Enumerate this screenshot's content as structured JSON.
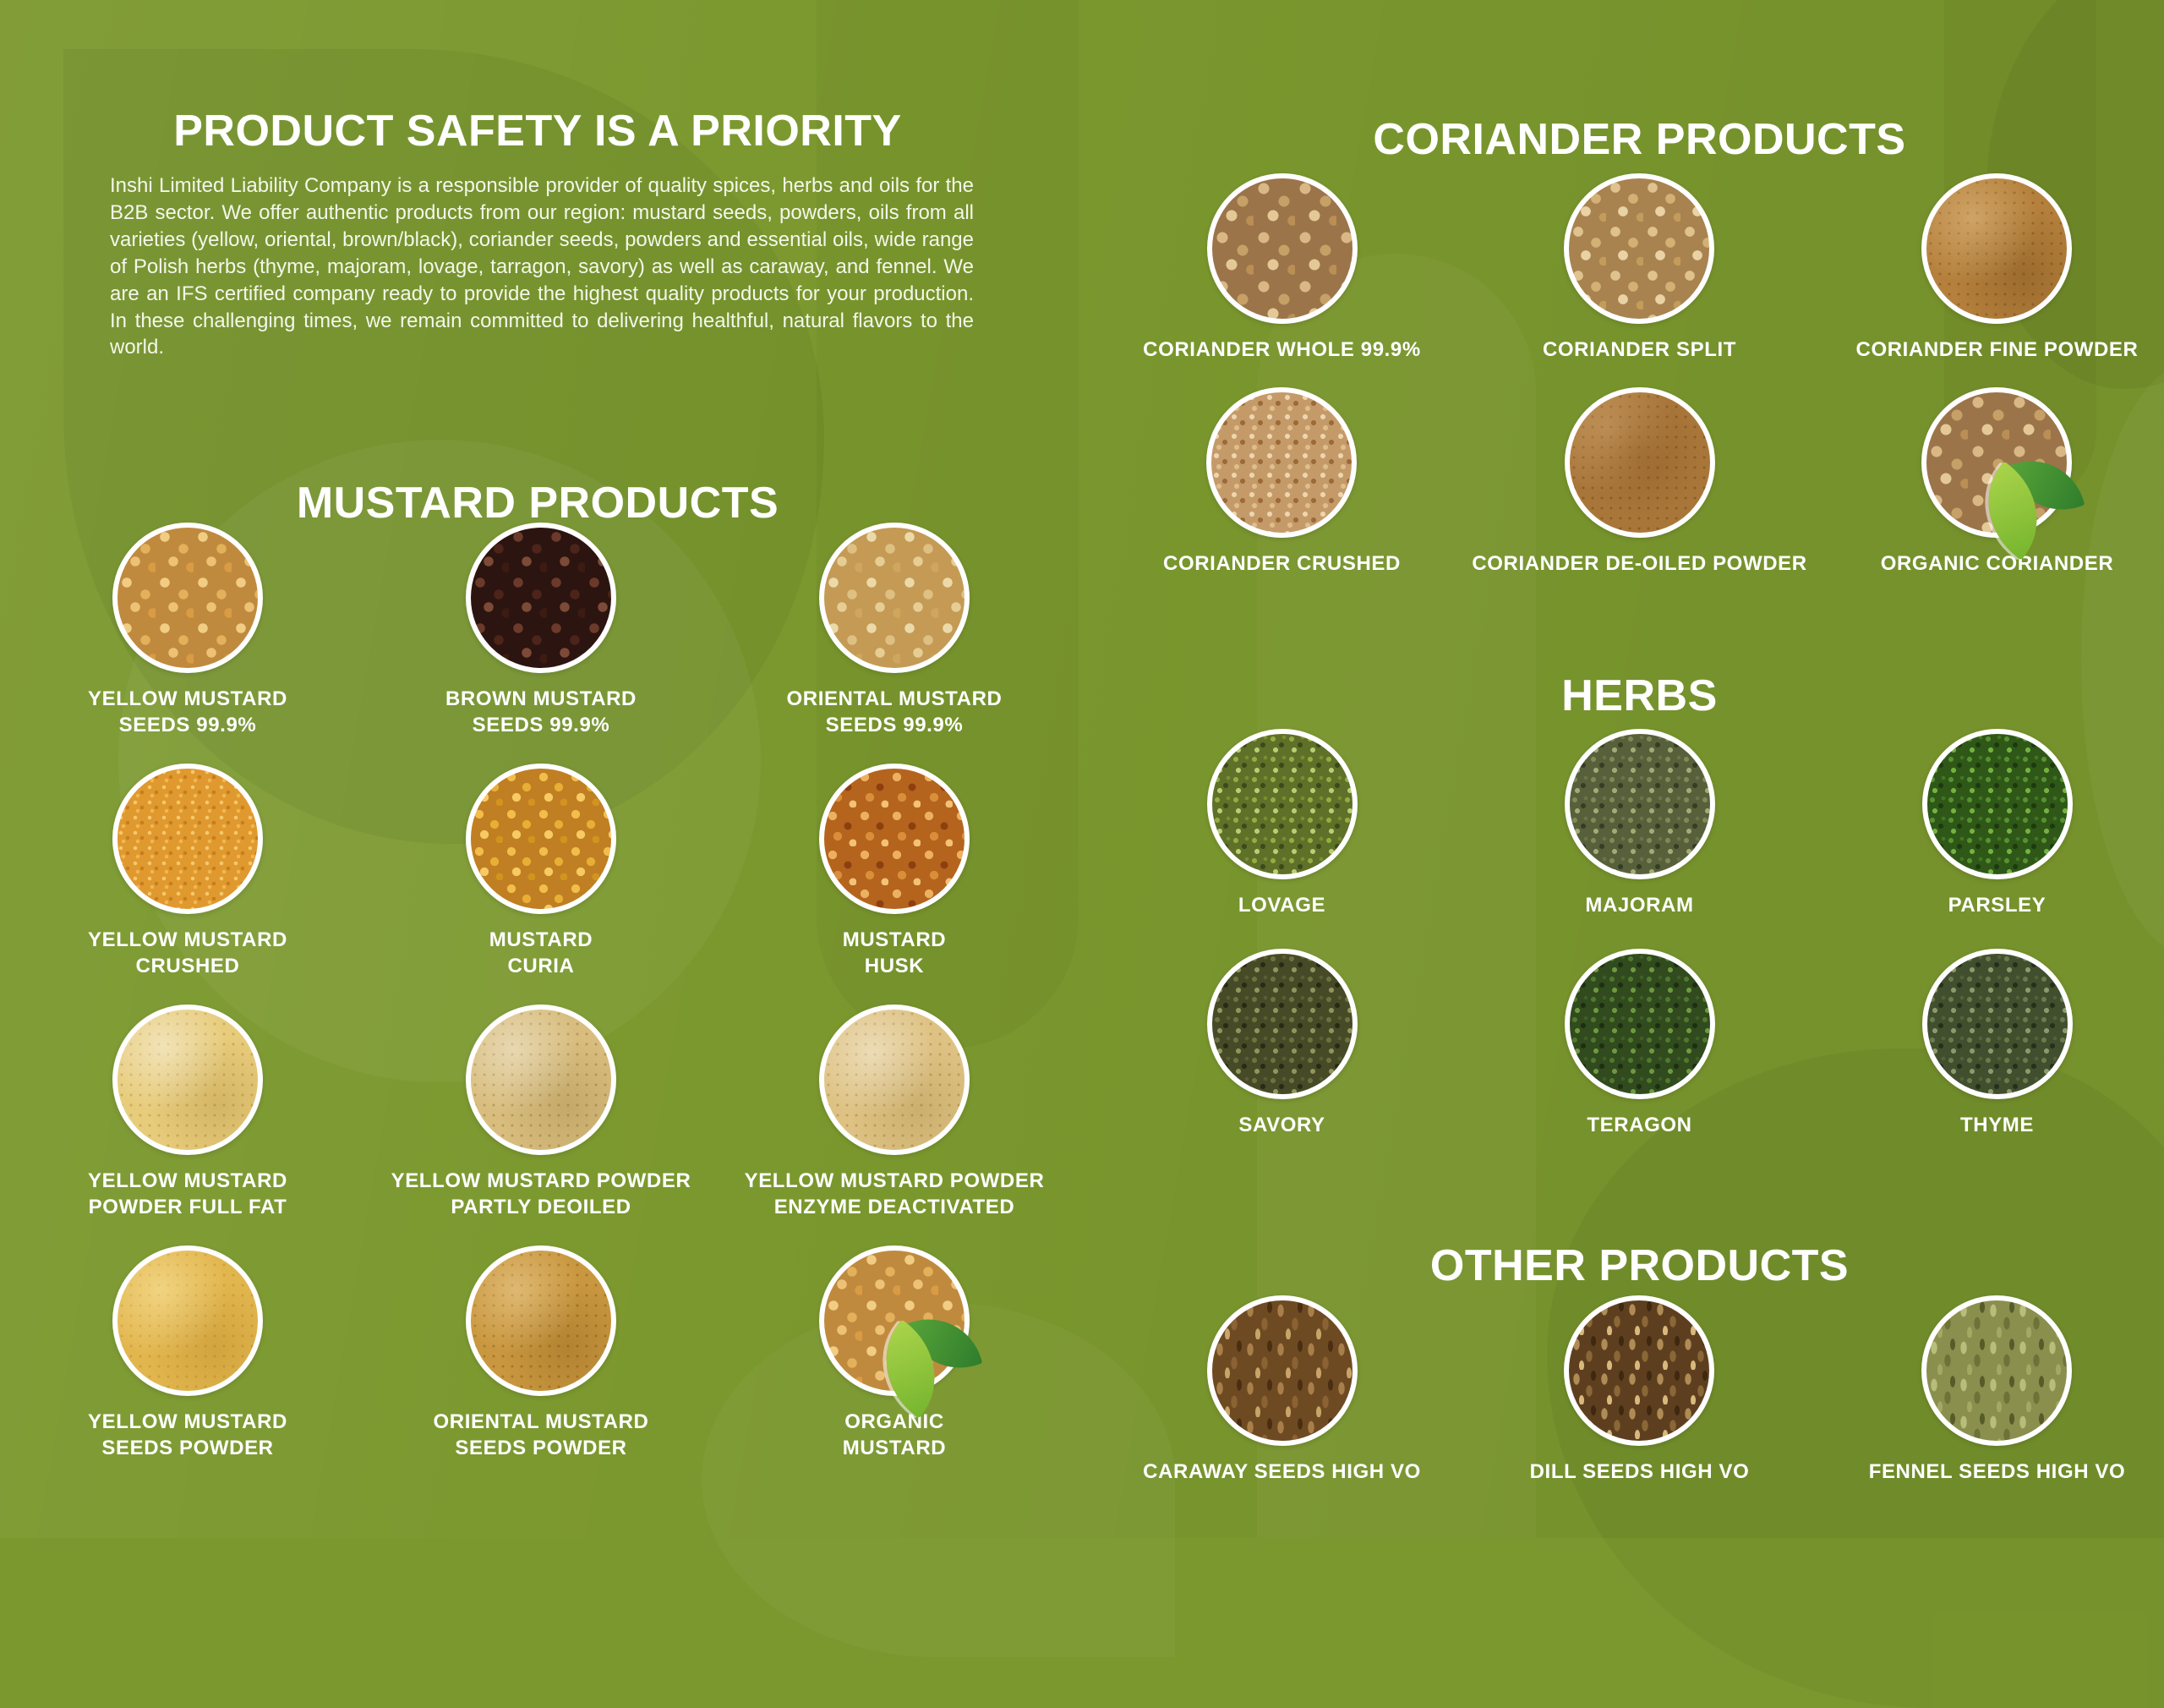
{
  "page": {
    "intro_title": "PRODUCT SAFETY IS A PRIORITY",
    "intro_text": "Inshi Limited Liability Company is a responsible provider of quality spices, herbs and oils for the B2B sector. We offer authentic products from our region: mustard seeds, powders, oils from all varieties (yellow, oriental, brown/black), coriander seeds, powders and essential oils, wide range of Polish herbs (thyme, majoram, lovage, tarragon, savory) as well as caraway, and fennel. We are an IFS certified company ready to provide the highest quality products for your production. In these challenging times, we remain committed to delivering healthful, natural flavors to the world."
  },
  "colors": {
    "background_green": "#7b982e",
    "text_white": "#ffffff",
    "organic_leaf_light": "#8dc63f",
    "organic_leaf_dark": "#3e8e35"
  },
  "icons": {
    "organic_leaf": "organic-leaf-icon"
  },
  "sections": {
    "mustard": {
      "title": "MUSTARD PRODUCTS",
      "items": [
        {
          "name": "YELLOW MUSTARD\nSEEDS 99.9%"
        },
        {
          "name": "BROWN MUSTARD\nSEEDS 99.9%"
        },
        {
          "name": "ORIENTAL MUSTARD\nSEEDS 99.9%"
        },
        {
          "name": "YELLOW MUSTARD\nCRUSHED"
        },
        {
          "name": "MUSTARD\nCURIA"
        },
        {
          "name": "MUSTARD\nHUSK"
        },
        {
          "name": "YELLOW MUSTARD\nPOWDER FULL FAT"
        },
        {
          "name": "YELLOW MUSTARD POWDER\nPARTLY DEOILED"
        },
        {
          "name": "YELLOW MUSTARD POWDER\nENZYME DEACTIVATED"
        },
        {
          "name": "YELLOW MUSTARD\nSEEDS POWDER"
        },
        {
          "name": "ORIENTAL MUSTARD\nSEEDS POWDER"
        },
        {
          "name": "ORGANIC\nMUSTARD",
          "icon": "organic-leaf-icon"
        }
      ]
    },
    "coriander": {
      "title": "CORIANDER PRODUCTS",
      "items": [
        {
          "name": "CORIANDER WHOLE 99.9%"
        },
        {
          "name": "CORIANDER SPLIT"
        },
        {
          "name": "CORIANDER FINE POWDER"
        },
        {
          "name": "CORIANDER CRUSHED"
        },
        {
          "name": "CORIANDER DE-OILED POWDER"
        },
        {
          "name": "ORGANIC CORIANDER",
          "icon": "organic-leaf-icon"
        }
      ]
    },
    "herbs": {
      "title": "HERBS",
      "items": [
        {
          "name": "LOVAGE"
        },
        {
          "name": "MAJORAM"
        },
        {
          "name": "PARSLEY"
        },
        {
          "name": "SAVORY"
        },
        {
          "name": "TERAGON"
        },
        {
          "name": "THYME"
        }
      ]
    },
    "other": {
      "title": "OTHER PRODUCTS",
      "items": [
        {
          "name": "CARAWAY SEEDS HIGH VO"
        },
        {
          "name": "DILL SEEDS HIGH VO"
        },
        {
          "name": "FENNEL SEEDS HIGH VO"
        }
      ]
    }
  }
}
